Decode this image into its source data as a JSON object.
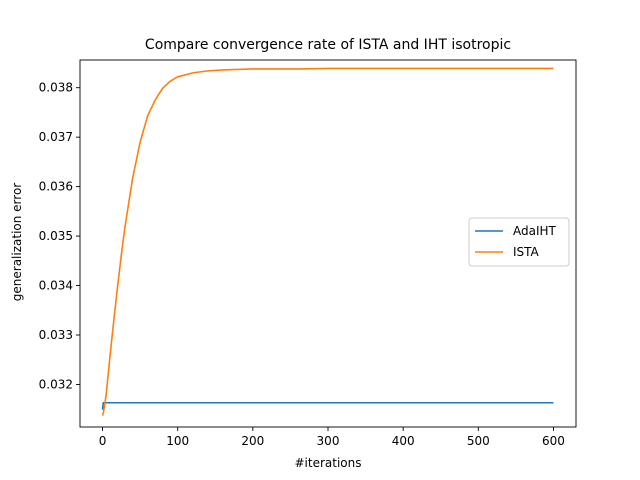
{
  "chart_data": {
    "type": "line",
    "title": "Compare convergence rate of ISTA and IHT isotropic",
    "xlabel": "#iterations",
    "ylabel": "generalization error",
    "xlim": [
      -30,
      630
    ],
    "ylim": [
      0.03114,
      0.03856
    ],
    "xticks": [
      0,
      100,
      200,
      300,
      400,
      500,
      600
    ],
    "yticks": [
      0.032,
      0.033,
      0.034,
      0.035,
      0.036,
      0.037,
      0.038
    ],
    "grid": false,
    "legend_position": "center-right",
    "series": [
      {
        "name": "AdaIHT",
        "color": "#1f77b4",
        "x": [
          0,
          1,
          600
        ],
        "y": [
          0.03149,
          0.03163,
          0.03163
        ]
      },
      {
        "name": "ISTA",
        "color": "#ff7f0e",
        "x": [
          0,
          1,
          3,
          5,
          10,
          15,
          20,
          25,
          30,
          40,
          50,
          60,
          70,
          80,
          90,
          100,
          120,
          140,
          160,
          180,
          200,
          230,
          260,
          300,
          350,
          400,
          450,
          500,
          550,
          600
        ],
        "y": [
          0.03137,
          0.03142,
          0.0316,
          0.03182,
          0.03258,
          0.0333,
          0.03398,
          0.03462,
          0.0352,
          0.03617,
          0.0369,
          0.03743,
          0.03775,
          0.03799,
          0.03813,
          0.03822,
          0.0383,
          0.03834,
          0.03836,
          0.03837,
          0.03838,
          0.03838,
          0.03838,
          0.03839,
          0.03839,
          0.03839,
          0.03839,
          0.03839,
          0.03839,
          0.03839
        ]
      }
    ]
  }
}
